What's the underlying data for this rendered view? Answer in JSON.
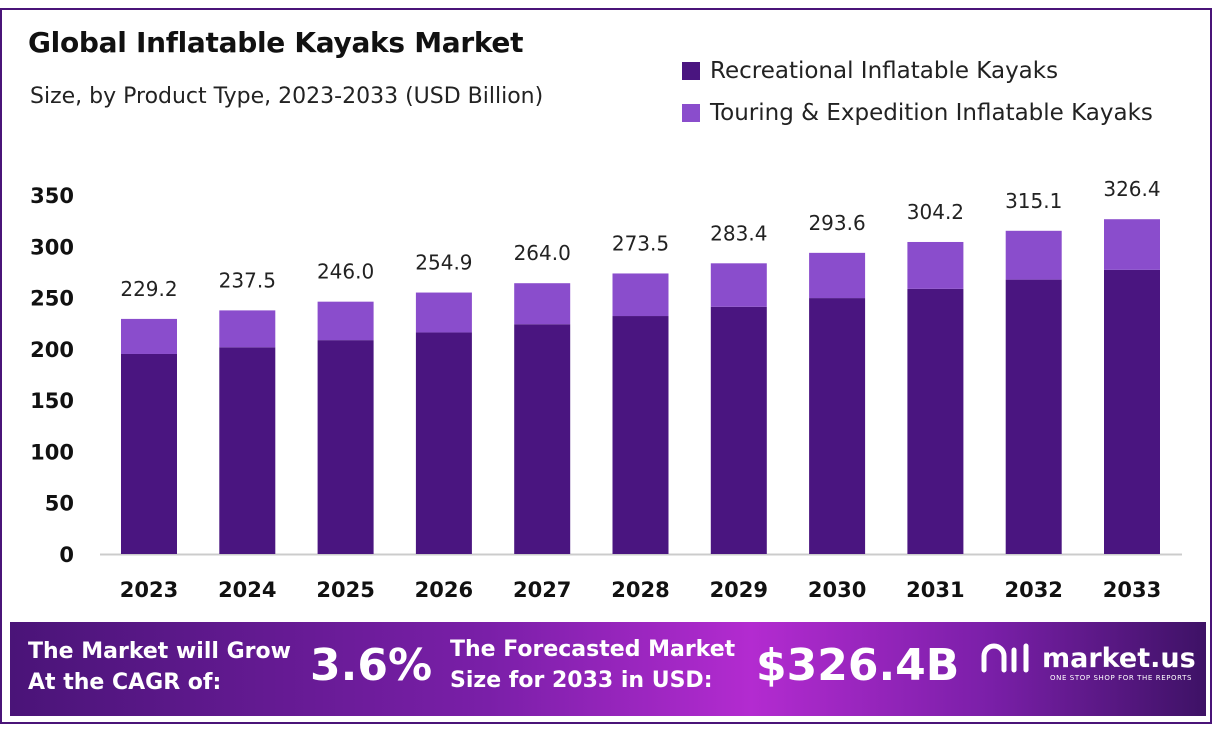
{
  "colors": {
    "recreational": "#4a1580",
    "touring": "#8a4dcc",
    "axis": "#cccccc",
    "frame": "#4a1478"
  },
  "chart_data": {
    "type": "bar",
    "stacked": true,
    "title": "Global Inflatable Kayaks Market",
    "subtitle": "Size, by Product Type, 2023-2033 (USD Billion)",
    "categories": [
      "2023",
      "2024",
      "2025",
      "2026",
      "2027",
      "2028",
      "2029",
      "2030",
      "2031",
      "2032",
      "2033"
    ],
    "series": [
      {
        "name": "Recreational Inflatable Kayaks",
        "values": [
          195.0,
          201.5,
          208.5,
          216.0,
          224.0,
          232.0,
          241.0,
          249.5,
          258.5,
          267.5,
          277.0
        ]
      },
      {
        "name": "Touring & Expedition Inflatable Kayaks",
        "values": [
          34.2,
          36.0,
          37.5,
          38.9,
          40.0,
          41.5,
          42.4,
          44.1,
          45.7,
          47.6,
          49.4
        ]
      }
    ],
    "totals": [
      "229.2",
      "237.5",
      "246.0",
      "254.9",
      "264.0",
      "273.5",
      "283.4",
      "293.6",
      "304.2",
      "315.1",
      "326.4"
    ],
    "ylim": [
      0,
      350
    ],
    "yticks": [
      0,
      50,
      100,
      150,
      200,
      250,
      300,
      350
    ],
    "xlabel": "",
    "ylabel": "",
    "legend_position": "top-right",
    "grid": false
  },
  "footer": {
    "cagr_label": "The Market will Grow\nAt the CAGR of:",
    "cagr_value": "3.6%",
    "forecast_label": "The Forecasted Market\nSize for 2033 in USD:",
    "forecast_value": "$326.4B",
    "brand_name": "market.us",
    "brand_tagline": "ONE STOP SHOP FOR THE REPORTS"
  }
}
